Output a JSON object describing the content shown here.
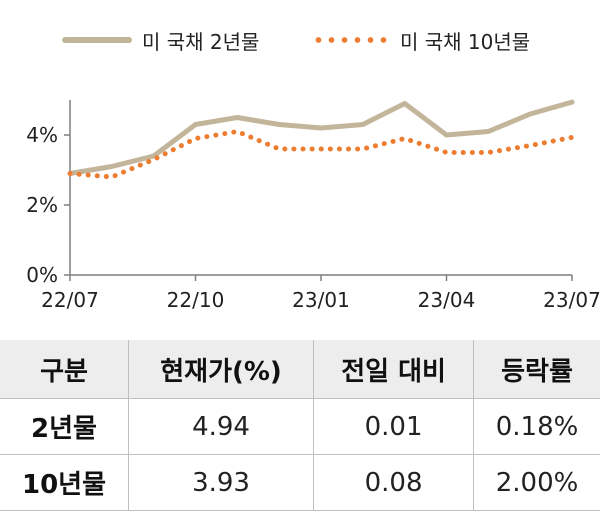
{
  "legend": {
    "series_2y": "미 국채 2년물",
    "series_10y": "미 국채 10년물"
  },
  "colors": {
    "series_2y": "#C3B59A",
    "series_10y": "#ED7D31",
    "axis": "#7F7F7F",
    "header_bg": "#EDEDED"
  },
  "chart_data": {
    "type": "line",
    "title": "",
    "xlabel": "",
    "ylabel": "",
    "ylim": [
      0,
      5
    ],
    "yticks": [
      "0%",
      "2%",
      "4%"
    ],
    "xticks": [
      "22/07",
      "22/10",
      "23/01",
      "23/04",
      "23/07"
    ],
    "series": [
      {
        "name": "미 국채 2년물",
        "style": "solid",
        "x": [
          "22/07",
          "22/08",
          "22/09",
          "22/10",
          "22/11",
          "22/12",
          "23/01",
          "23/02",
          "23/03",
          "23/04",
          "23/05",
          "23/06",
          "23/07"
        ],
        "values": [
          2.9,
          3.1,
          3.4,
          4.3,
          4.5,
          4.3,
          4.2,
          4.3,
          4.9,
          4.0,
          4.1,
          4.6,
          4.94
        ]
      },
      {
        "name": "미 국채 10년물",
        "style": "dotted",
        "x": [
          "22/07",
          "22/08",
          "22/09",
          "22/10",
          "22/11",
          "22/12",
          "23/01",
          "23/02",
          "23/03",
          "23/04",
          "23/05",
          "23/06",
          "23/07"
        ],
        "values": [
          2.9,
          2.8,
          3.3,
          3.9,
          4.1,
          3.6,
          3.6,
          3.6,
          3.9,
          3.5,
          3.5,
          3.7,
          3.93
        ]
      }
    ]
  },
  "table": {
    "headers": [
      "구분",
      "현재가(%)",
      "전일 대비",
      "등락률"
    ],
    "rows": [
      [
        "2년물",
        "4.94",
        "0.01",
        "0.18%"
      ],
      [
        "10년물",
        "3.93",
        "0.08",
        "2.00%"
      ]
    ]
  }
}
